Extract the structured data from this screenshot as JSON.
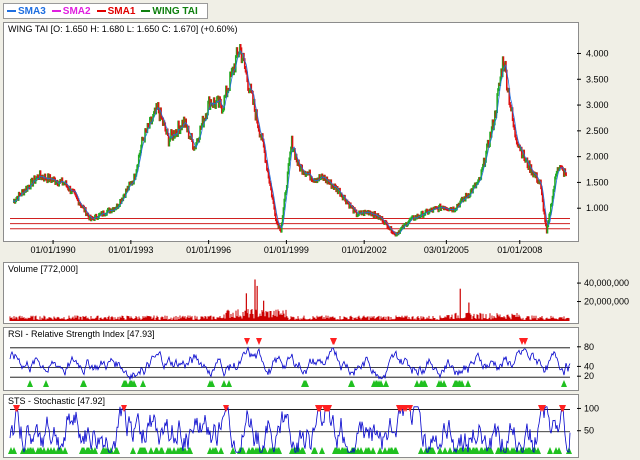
{
  "legend": [
    {
      "name": "SMA3",
      "color": "#1f6fe0"
    },
    {
      "name": "SMA2",
      "color": "#e020e0"
    },
    {
      "name": "SMA1",
      "color": "#e00000"
    },
    {
      "name": "WING TAI",
      "color": "#108010"
    }
  ],
  "price_panel": {
    "title": "WING TAI [O: 1.650  H: 1.680  L: 1.650  C: 1.670] (+0.60%)",
    "ytick_labels": [
      "4.000",
      "3.500",
      "3.000",
      "2.500",
      "2.000",
      "1.500",
      "1.000"
    ],
    "xtick_labels": [
      "01/01/1990",
      "01/01/1993",
      "01/01/1996",
      "01/01/1999",
      "01/01/2002",
      "03/01/2005",
      "01/01/2008"
    ]
  },
  "volume_panel": {
    "title": "Volume [772,000]",
    "ytick_labels": [
      "40,000,000",
      "20,000,000"
    ]
  },
  "rsi_panel": {
    "title": "RSI - Relative Strength Index [47.93]",
    "ytick_labels": [
      "80",
      "40",
      "20"
    ]
  },
  "sts_panel": {
    "title": "STS - Stochastic [47.92]",
    "ytick_labels": [
      "100",
      "50"
    ]
  },
  "colors": {
    "up": "#22aa22",
    "down": "#dd1111",
    "sma": "#1f6fe0",
    "volume": "#cc0000",
    "oscillator": "#0000cc",
    "overbought_marker": "#ff2020",
    "oversold_marker": "#20c020"
  },
  "chart_data": [
    {
      "type": "line",
      "title": "WING TAI [O: 1.650  H: 1.680  L: 1.650  C: 1.670] (+0.60%)",
      "x": [
        "1988-06",
        "1989-06",
        "1990-06",
        "1990-10",
        "1991-06",
        "1992-06",
        "1993-02",
        "1993-06",
        "1994-01",
        "1994-06",
        "1995-01",
        "1995-06",
        "1996-01",
        "1996-07",
        "1997-03",
        "1997-06",
        "1998-02",
        "1998-08",
        "1998-10",
        "1999-03",
        "1999-06",
        "2000-01",
        "2000-06",
        "2001-01",
        "2001-09",
        "2002-03",
        "2002-09",
        "2003-03",
        "2003-10",
        "2004-06",
        "2005-01",
        "2005-06",
        "2006-01",
        "2006-06",
        "2007-01",
        "2007-05",
        "2007-10",
        "2008-03",
        "2008-10",
        "2009-01",
        "2009-06",
        "2009-10"
      ],
      "series": [
        {
          "name": "WING TAI",
          "values": [
            1.15,
            1.65,
            1.5,
            1.3,
            0.8,
            1.05,
            1.6,
            2.35,
            2.95,
            2.35,
            2.7,
            2.2,
            3.1,
            3.0,
            4.15,
            3.6,
            2.2,
            0.75,
            0.6,
            2.3,
            1.85,
            1.6,
            1.6,
            1.35,
            0.9,
            0.95,
            0.8,
            0.5,
            0.8,
            0.95,
            1.05,
            1.0,
            1.3,
            1.55,
            2.8,
            3.95,
            2.5,
            1.95,
            1.5,
            0.55,
            1.85,
            1.67
          ]
        }
      ],
      "ylim": [
        0.5,
        4.3
      ],
      "xtick_labels": [
        "01/01/1990",
        "01/01/1993",
        "01/01/1996",
        "01/01/1999",
        "01/01/2002",
        "03/01/2005",
        "01/01/2008"
      ]
    },
    {
      "type": "bar",
      "title": "Volume [772,000]",
      "ylim": [
        0,
        52000000
      ],
      "spikes": [
        {
          "x": "1997-06",
          "value": 30000000
        },
        {
          "x": "1997-10",
          "value": 45000000
        },
        {
          "x": "1997-11",
          "value": 38000000
        },
        {
          "x": "1998-02",
          "value": 22000000
        },
        {
          "x": "2005-09",
          "value": 35000000
        },
        {
          "x": "2006-01",
          "value": 20000000
        }
      ],
      "typical_value": 4000000
    },
    {
      "type": "line",
      "title": "RSI - Relative Strength Index [47.93]",
      "ylim": [
        0,
        100
      ],
      "levels": [
        80,
        40,
        20
      ],
      "last_value": 47.93
    },
    {
      "type": "line",
      "title": "STS - Stochastic [47.92]",
      "ylim": [
        0,
        110
      ],
      "levels": [
        100,
        50
      ],
      "last_value": 47.92
    }
  ]
}
